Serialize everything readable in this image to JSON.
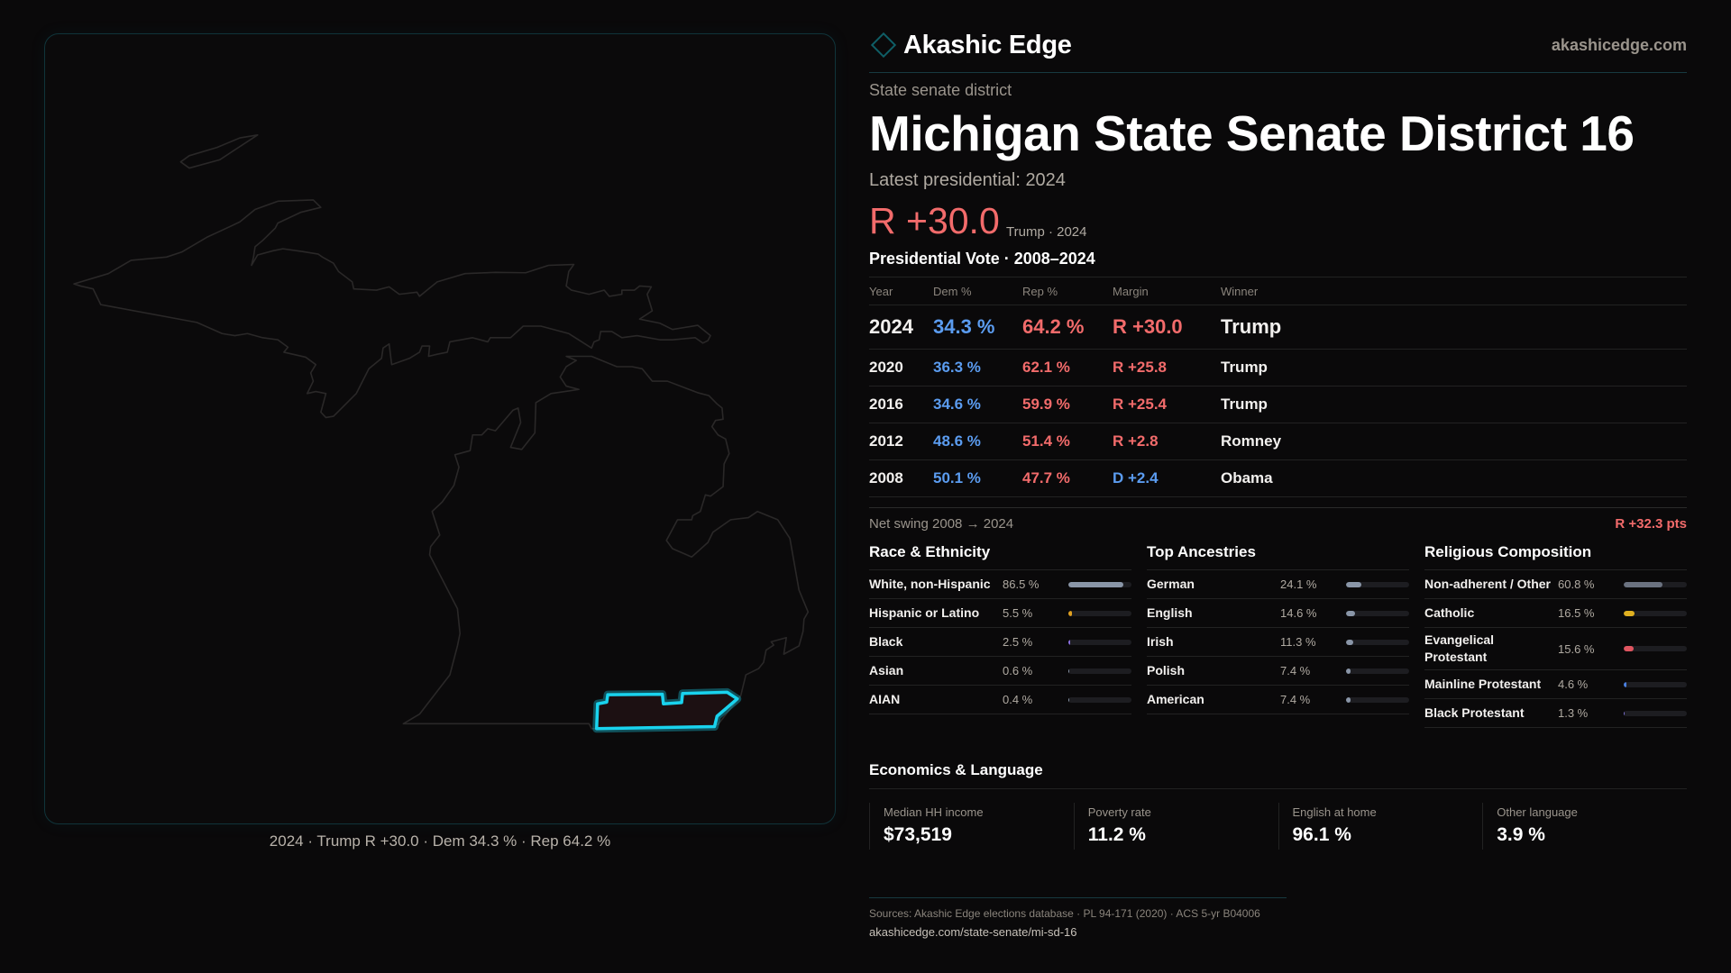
{
  "map": {
    "caption": "2024 · Trump R +30.0 · Dem 34.3 % · Rep 64.2 %",
    "district_stroke": "#19d3ee",
    "district_fill": "#1c1012",
    "state_stroke": "#2a2828"
  },
  "header": {
    "brand": "Akashic Edge",
    "site": "akashicedge.com"
  },
  "kicker": "State senate district",
  "title": "Michigan State Senate District 16",
  "latest_label": "Latest presidential: 2024",
  "latest_margin": "R +30.0",
  "latest_sub": "Trump · 2024",
  "vote_table": {
    "title": "Presidential Vote · 2008–2024",
    "columns": [
      "Year",
      "Dem %",
      "Rep %",
      "Margin",
      "Winner"
    ],
    "rows": [
      {
        "year": "2024",
        "dem": "34.3 %",
        "rep": "64.2 %",
        "margin": "R +30.0",
        "margin_party": "rep",
        "winner": "Trump"
      },
      {
        "year": "2020",
        "dem": "36.3 %",
        "rep": "62.1 %",
        "margin": "R +25.8",
        "margin_party": "rep",
        "winner": "Trump"
      },
      {
        "year": "2016",
        "dem": "34.6 %",
        "rep": "59.9 %",
        "margin": "R +25.4",
        "margin_party": "rep",
        "winner": "Trump"
      },
      {
        "year": "2012",
        "dem": "48.6 %",
        "rep": "51.4 %",
        "margin": "R +2.8",
        "margin_party": "rep",
        "winner": "Romney"
      },
      {
        "year": "2008",
        "dem": "50.1 %",
        "rep": "47.7 %",
        "margin": "D +2.4",
        "margin_party": "dem",
        "winner": "Obama"
      }
    ]
  },
  "swing": {
    "label": "Net swing 2008 → 2024",
    "value": "R +32.3 pts"
  },
  "sections": [
    {
      "title": "Race & Ethnicity",
      "items": [
        {
          "label": "White, non-Hispanic",
          "value": "86.5 %",
          "pct": 86.5,
          "color": "#8a96a8"
        },
        {
          "label": "Hispanic or Latino",
          "value": "5.5 %",
          "pct": 5.5,
          "color": "#e0a020"
        },
        {
          "label": "Black",
          "value": "2.5 %",
          "pct": 2.5,
          "color": "#8b6fe0"
        },
        {
          "label": "Asian",
          "value": "0.6 %",
          "pct": 0.6,
          "color": "#8a96a8"
        },
        {
          "label": "AIAN",
          "value": "0.4 %",
          "pct": 0.4,
          "color": "#8a96a8"
        }
      ]
    },
    {
      "title": "Top Ancestries",
      "items": [
        {
          "label": "German",
          "value": "24.1 %",
          "pct": 24.1,
          "color": "#8a96a8"
        },
        {
          "label": "English",
          "value": "14.6 %",
          "pct": 14.6,
          "color": "#8a96a8"
        },
        {
          "label": "Irish",
          "value": "11.3 %",
          "pct": 11.3,
          "color": "#8a96a8"
        },
        {
          "label": "Polish",
          "value": "7.4 %",
          "pct": 7.4,
          "color": "#8a96a8"
        },
        {
          "label": "American",
          "value": "7.4 %",
          "pct": 7.4,
          "color": "#8a96a8"
        }
      ]
    },
    {
      "title": "Religious Composition",
      "items": [
        {
          "label": "Non-adherent / Other",
          "value": "60.8 %",
          "pct": 60.8,
          "color": "#6b7280"
        },
        {
          "label": "Catholic",
          "value": "16.5 %",
          "pct": 16.5,
          "color": "#e0b020"
        },
        {
          "label": "Evangelical Protestant",
          "value": "15.6 %",
          "pct": 15.6,
          "color": "#e05560"
        },
        {
          "label": "Mainline Protestant",
          "value": "4.6 %",
          "pct": 4.6,
          "color": "#4a80e0"
        },
        {
          "label": "Black Protestant",
          "value": "1.3 %",
          "pct": 1.3,
          "color": "#7a6fd0"
        }
      ]
    }
  ],
  "economics": {
    "title": "Economics & Language",
    "cards": [
      {
        "label": "Median HH income",
        "value": "$73,519"
      },
      {
        "label": "Poverty rate",
        "value": "11.2 %"
      },
      {
        "label": "English at home",
        "value": "96.1 %"
      },
      {
        "label": "Other language",
        "value": "3.9 %"
      }
    ]
  },
  "footer": {
    "sources": "Sources: Akashic Edge elections database · PL 94-171 (2020) · ACS 5-yr B04006",
    "url": "akashicedge.com/state-senate/mi-sd-16"
  }
}
